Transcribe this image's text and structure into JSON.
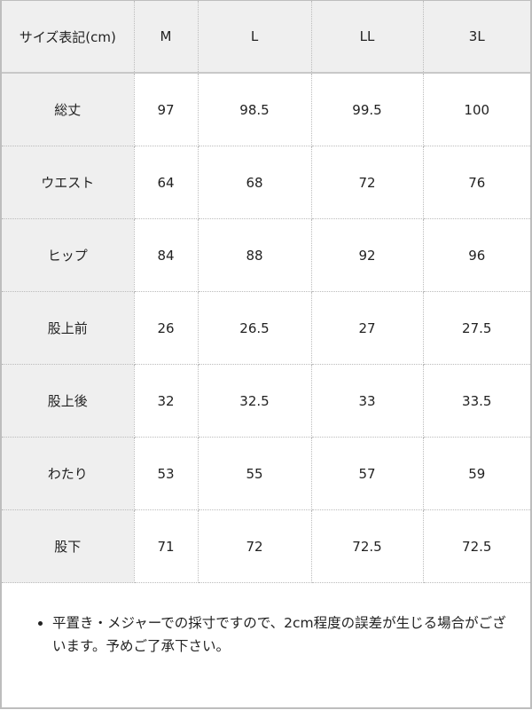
{
  "table": {
    "headers": [
      "サイズ表記(cm)",
      "M",
      "L",
      "LL",
      "3L"
    ],
    "rows": [
      {
        "label": "総丈",
        "values": [
          "97",
          "98.5",
          "99.5",
          "100"
        ]
      },
      {
        "label": "ウエスト",
        "values": [
          "64",
          "68",
          "72",
          "76"
        ]
      },
      {
        "label": "ヒップ",
        "values": [
          "84",
          "88",
          "92",
          "96"
        ]
      },
      {
        "label": "股上前",
        "values": [
          "26",
          "26.5",
          "27",
          "27.5"
        ]
      },
      {
        "label": "股上後",
        "values": [
          "32",
          "32.5",
          "33",
          "33.5"
        ]
      },
      {
        "label": "わたり",
        "values": [
          "53",
          "55",
          "57",
          "59"
        ]
      },
      {
        "label": "股下",
        "values": [
          "71",
          "72",
          "72.5",
          "72.5"
        ]
      }
    ]
  },
  "note": "平置き・メジャーでの採寸ですので、2cm程度の誤差が生じる場合がございます。予めご了承下さい。"
}
